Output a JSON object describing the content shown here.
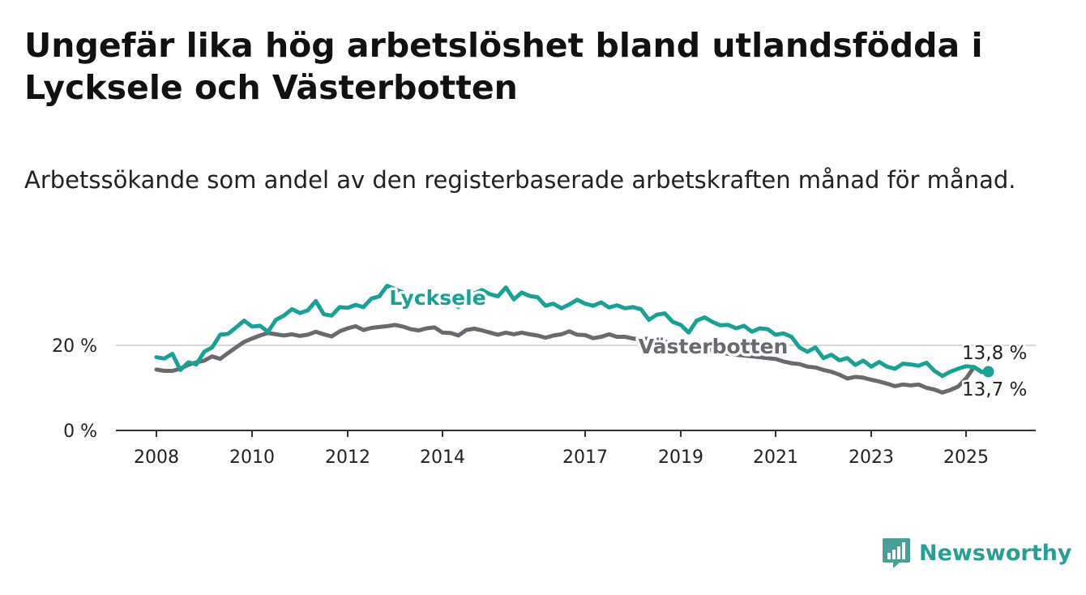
{
  "title": "Ungefär lika hög arbetslöshet bland utlandsfödda i Lycksele och Västerbotten",
  "subtitle": "Arbetssökande som andel av den registerbaserade arbetskraften månad för månad.",
  "brand": {
    "name": "Newsworthy",
    "icon": "bar-chart-icon",
    "color": "#4a9e98"
  },
  "chart_data": {
    "type": "line",
    "x_axis": {
      "type": "date",
      "range": [
        "2007-10",
        "2026-05"
      ],
      "ticks": [
        "2008",
        "2010",
        "2012",
        "2014",
        "2017",
        "2019",
        "2021",
        "2023",
        "2025"
      ]
    },
    "y_axis": {
      "range": [
        0,
        35
      ],
      "ticks": [
        "0 %",
        "20 %"
      ],
      "grid": true
    },
    "series": [
      {
        "name": "Lycksele",
        "color": "#1aa095",
        "end_label": "13,8 %",
        "points": [
          [
            "2008-01",
            17.2
          ],
          [
            "2008-03",
            16.9
          ],
          [
            "2008-05",
            18.0
          ],
          [
            "2008-07",
            14.2
          ],
          [
            "2008-09",
            16.0
          ],
          [
            "2008-11",
            15.5
          ],
          [
            "2009-01",
            18.5
          ],
          [
            "2009-03",
            19.5
          ],
          [
            "2009-05",
            22.5
          ],
          [
            "2009-07",
            22.7
          ],
          [
            "2009-09",
            24.2
          ],
          [
            "2009-11",
            25.8
          ],
          [
            "2010-01",
            24.4
          ],
          [
            "2010-03",
            24.6
          ],
          [
            "2010-05",
            23.2
          ],
          [
            "2010-07",
            26.0
          ],
          [
            "2010-09",
            27.0
          ],
          [
            "2010-11",
            28.5
          ],
          [
            "2011-01",
            27.6
          ],
          [
            "2011-03",
            28.2
          ],
          [
            "2011-05",
            30.4
          ],
          [
            "2011-07",
            27.3
          ],
          [
            "2011-09",
            27.0
          ],
          [
            "2011-11",
            29.0
          ],
          [
            "2012-01",
            28.8
          ],
          [
            "2012-03",
            29.5
          ],
          [
            "2012-05",
            29.0
          ],
          [
            "2012-07",
            31.0
          ],
          [
            "2012-09",
            31.5
          ],
          [
            "2012-11",
            34.0
          ],
          [
            "2013-01",
            33.2
          ],
          [
            "2013-03",
            32.4
          ],
          [
            "2013-05",
            31.0
          ],
          [
            "2013-07",
            29.5
          ],
          [
            "2013-09",
            31.0
          ],
          [
            "2013-11",
            32.0
          ],
          [
            "2014-01",
            31.2
          ],
          [
            "2014-03",
            30.5
          ],
          [
            "2014-05",
            29.0
          ],
          [
            "2014-07",
            31.2
          ],
          [
            "2014-09",
            32.2
          ],
          [
            "2014-11",
            33.0
          ],
          [
            "2015-01",
            32.0
          ],
          [
            "2015-03",
            31.5
          ],
          [
            "2015-05",
            33.6
          ],
          [
            "2015-07",
            30.8
          ],
          [
            "2015-09",
            32.4
          ],
          [
            "2015-11",
            31.6
          ],
          [
            "2016-01",
            31.3
          ],
          [
            "2016-03",
            29.3
          ],
          [
            "2016-05",
            29.8
          ],
          [
            "2016-07",
            28.7
          ],
          [
            "2016-09",
            29.6
          ],
          [
            "2016-11",
            30.7
          ],
          [
            "2017-01",
            29.8
          ],
          [
            "2017-03",
            29.3
          ],
          [
            "2017-05",
            30.1
          ],
          [
            "2017-07",
            28.9
          ],
          [
            "2017-09",
            29.4
          ],
          [
            "2017-11",
            28.7
          ],
          [
            "2018-01",
            29.0
          ],
          [
            "2018-03",
            28.5
          ],
          [
            "2018-05",
            26.0
          ],
          [
            "2018-07",
            27.2
          ],
          [
            "2018-09",
            27.5
          ],
          [
            "2018-11",
            25.5
          ],
          [
            "2019-01",
            24.8
          ],
          [
            "2019-03",
            23.0
          ],
          [
            "2019-05",
            25.8
          ],
          [
            "2019-07",
            26.6
          ],
          [
            "2019-09",
            25.5
          ],
          [
            "2019-11",
            24.7
          ],
          [
            "2020-01",
            24.8
          ],
          [
            "2020-03",
            24.0
          ],
          [
            "2020-05",
            24.6
          ],
          [
            "2020-07",
            23.2
          ],
          [
            "2020-09",
            24.0
          ],
          [
            "2020-11",
            23.8
          ],
          [
            "2021-01",
            22.5
          ],
          [
            "2021-03",
            22.8
          ],
          [
            "2021-05",
            22.0
          ],
          [
            "2021-07",
            19.5
          ],
          [
            "2021-09",
            18.5
          ],
          [
            "2021-11",
            19.5
          ],
          [
            "2022-01",
            17.0
          ],
          [
            "2022-03",
            17.8
          ],
          [
            "2022-05",
            16.5
          ],
          [
            "2022-07",
            17.0
          ],
          [
            "2022-09",
            15.4
          ],
          [
            "2022-11",
            16.4
          ],
          [
            "2023-01",
            15.0
          ],
          [
            "2023-03",
            16.1
          ],
          [
            "2023-05",
            15.0
          ],
          [
            "2023-07",
            14.5
          ],
          [
            "2023-09",
            15.7
          ],
          [
            "2023-11",
            15.5
          ],
          [
            "2024-01",
            15.2
          ],
          [
            "2024-03",
            15.9
          ],
          [
            "2024-05",
            14.0
          ],
          [
            "2024-07",
            12.8
          ],
          [
            "2024-09",
            13.8
          ],
          [
            "2024-11",
            14.5
          ],
          [
            "2025-01",
            15.1
          ],
          [
            "2025-03",
            14.9
          ],
          [
            "2025-05",
            13.8
          ]
        ]
      },
      {
        "name": "Västerbotten",
        "color": "#696a70",
        "end_label": "13,7 %",
        "points": [
          [
            "2008-01",
            14.3
          ],
          [
            "2008-03",
            14.0
          ],
          [
            "2008-05",
            14.0
          ],
          [
            "2008-07",
            14.5
          ],
          [
            "2008-09",
            15.4
          ],
          [
            "2008-11",
            16.0
          ],
          [
            "2009-01",
            16.4
          ],
          [
            "2009-03",
            17.4
          ],
          [
            "2009-05",
            16.8
          ],
          [
            "2009-07",
            18.2
          ],
          [
            "2009-09",
            19.5
          ],
          [
            "2009-11",
            20.8
          ],
          [
            "2010-01",
            21.6
          ],
          [
            "2010-03",
            22.3
          ],
          [
            "2010-05",
            22.9
          ],
          [
            "2010-07",
            22.6
          ],
          [
            "2010-09",
            22.3
          ],
          [
            "2010-11",
            22.6
          ],
          [
            "2011-01",
            22.2
          ],
          [
            "2011-03",
            22.5
          ],
          [
            "2011-05",
            23.2
          ],
          [
            "2011-07",
            22.6
          ],
          [
            "2011-09",
            22.1
          ],
          [
            "2011-11",
            23.3
          ],
          [
            "2012-01",
            24.0
          ],
          [
            "2012-03",
            24.5
          ],
          [
            "2012-05",
            23.6
          ],
          [
            "2012-07",
            24.1
          ],
          [
            "2012-09",
            24.3
          ],
          [
            "2012-11",
            24.5
          ],
          [
            "2013-01",
            24.8
          ],
          [
            "2013-03",
            24.4
          ],
          [
            "2013-05",
            23.8
          ],
          [
            "2013-07",
            23.5
          ],
          [
            "2013-09",
            24.0
          ],
          [
            "2013-11",
            24.2
          ],
          [
            "2014-01",
            23.0
          ],
          [
            "2014-03",
            22.9
          ],
          [
            "2014-05",
            22.3
          ],
          [
            "2014-07",
            23.6
          ],
          [
            "2014-09",
            23.9
          ],
          [
            "2014-11",
            23.5
          ],
          [
            "2015-01",
            23.0
          ],
          [
            "2015-03",
            22.5
          ],
          [
            "2015-05",
            23.0
          ],
          [
            "2015-07",
            22.6
          ],
          [
            "2015-09",
            23.0
          ],
          [
            "2015-11",
            22.6
          ],
          [
            "2016-01",
            22.3
          ],
          [
            "2016-03",
            21.8
          ],
          [
            "2016-05",
            22.3
          ],
          [
            "2016-07",
            22.6
          ],
          [
            "2016-09",
            23.3
          ],
          [
            "2016-11",
            22.5
          ],
          [
            "2017-01",
            22.4
          ],
          [
            "2017-03",
            21.7
          ],
          [
            "2017-05",
            22.0
          ],
          [
            "2017-07",
            22.6
          ],
          [
            "2017-09",
            22.0
          ],
          [
            "2017-11",
            22.0
          ],
          [
            "2018-01",
            21.6
          ],
          [
            "2018-03",
            21.4
          ],
          [
            "2018-05",
            21.6
          ],
          [
            "2018-07",
            21.2
          ],
          [
            "2018-09",
            20.8
          ],
          [
            "2018-11",
            20.6
          ],
          [
            "2019-01",
            20.2
          ],
          [
            "2019-03",
            19.8
          ],
          [
            "2019-05",
            19.6
          ],
          [
            "2019-07",
            19.2
          ],
          [
            "2019-09",
            18.8
          ],
          [
            "2019-11",
            18.4
          ],
          [
            "2020-01",
            18.0
          ],
          [
            "2020-03",
            17.8
          ],
          [
            "2020-05",
            17.6
          ],
          [
            "2020-07",
            17.4
          ],
          [
            "2020-09",
            17.2
          ],
          [
            "2020-11",
            17.0
          ],
          [
            "2021-01",
            16.8
          ],
          [
            "2021-03",
            16.2
          ],
          [
            "2021-05",
            15.8
          ],
          [
            "2021-07",
            15.6
          ],
          [
            "2021-09",
            15.0
          ],
          [
            "2021-11",
            14.8
          ],
          [
            "2022-01",
            14.2
          ],
          [
            "2022-03",
            13.8
          ],
          [
            "2022-05",
            13.1
          ],
          [
            "2022-07",
            12.2
          ],
          [
            "2022-09",
            12.6
          ],
          [
            "2022-11",
            12.4
          ],
          [
            "2023-01",
            11.9
          ],
          [
            "2023-03",
            11.5
          ],
          [
            "2023-05",
            11.0
          ],
          [
            "2023-07",
            10.4
          ],
          [
            "2023-09",
            10.8
          ],
          [
            "2023-11",
            10.6
          ],
          [
            "2024-01",
            10.8
          ],
          [
            "2024-03",
            10.0
          ],
          [
            "2024-05",
            9.6
          ],
          [
            "2024-07",
            8.9
          ],
          [
            "2024-09",
            9.5
          ],
          [
            "2024-11",
            10.3
          ],
          [
            "2025-01",
            12.2
          ],
          [
            "2025-03",
            14.9
          ],
          [
            "2025-05",
            13.7
          ]
        ]
      }
    ]
  }
}
